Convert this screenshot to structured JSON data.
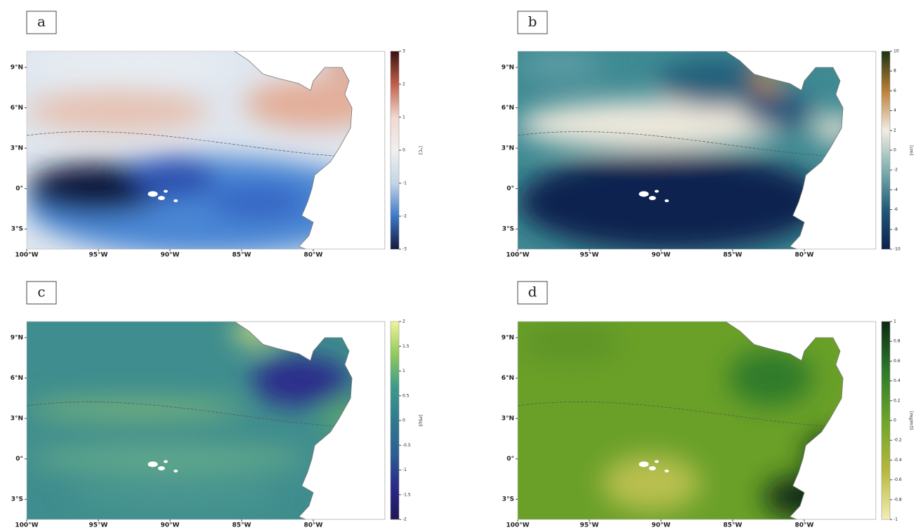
{
  "map": {
    "xlim": [
      -100,
      -75
    ],
    "ylim": [
      -4.5,
      10.2
    ],
    "xticks": [
      {
        "value": -100,
        "label": "100°W"
      },
      {
        "value": -95,
        "label": "95°W"
      },
      {
        "value": -90,
        "label": "90°W"
      },
      {
        "value": -85,
        "label": "85°W"
      },
      {
        "value": -80,
        "label": "80°W"
      }
    ],
    "yticks": [
      {
        "value": 9,
        "label": "9°N"
      },
      {
        "value": 6,
        "label": "6°N"
      },
      {
        "value": 3,
        "label": "3°N"
      },
      {
        "value": 0,
        "label": "0°"
      },
      {
        "value": -3,
        "label": "3°S"
      }
    ]
  },
  "panels": [
    {
      "label": "a",
      "units": "[°C]",
      "clim": [
        -3,
        3
      ],
      "cticks": [
        -3,
        -2,
        -1,
        0,
        1,
        2,
        3
      ],
      "colors": [
        "#141a3d",
        "#3d78c9",
        "#c3d5e6",
        "#f0f0f0",
        "#f0d8cf",
        "#c0604a",
        "#3b0f0f"
      ]
    },
    {
      "label": "b",
      "units": "[cm]",
      "clim": [
        -10,
        10
      ],
      "cticks": [
        -10,
        -8,
        -6,
        -4,
        -2,
        0,
        2,
        4,
        6,
        8,
        10
      ],
      "colors": [
        "#0c1f4a",
        "#205a78",
        "#7fb0b0",
        "#f2ede2",
        "#b9803a",
        "#1a3310"
      ]
    },
    {
      "label": "c",
      "units": "[PSU]",
      "clim": [
        -2,
        2
      ],
      "cticks": [
        -2,
        -1.5,
        -1,
        -0.5,
        0,
        0.5,
        1,
        1.5,
        2
      ],
      "colors": [
        "#1f1656",
        "#2a2a8a",
        "#2c5f94",
        "#2f7a8e",
        "#3c9a8c",
        "#8fca5a",
        "#f3f39a"
      ]
    },
    {
      "label": "d",
      "units": "[mg/m3]",
      "clim": [
        -1,
        1
      ],
      "cticks": [
        -1,
        -0.8,
        -0.6,
        -0.4,
        -0.2,
        0,
        0.2,
        0.4,
        0.6,
        0.8,
        1
      ],
      "colors": [
        "#f3eeb6",
        "#b5b83a",
        "#6da52a",
        "#2e7a2a",
        "#0b2a12"
      ]
    }
  ]
}
